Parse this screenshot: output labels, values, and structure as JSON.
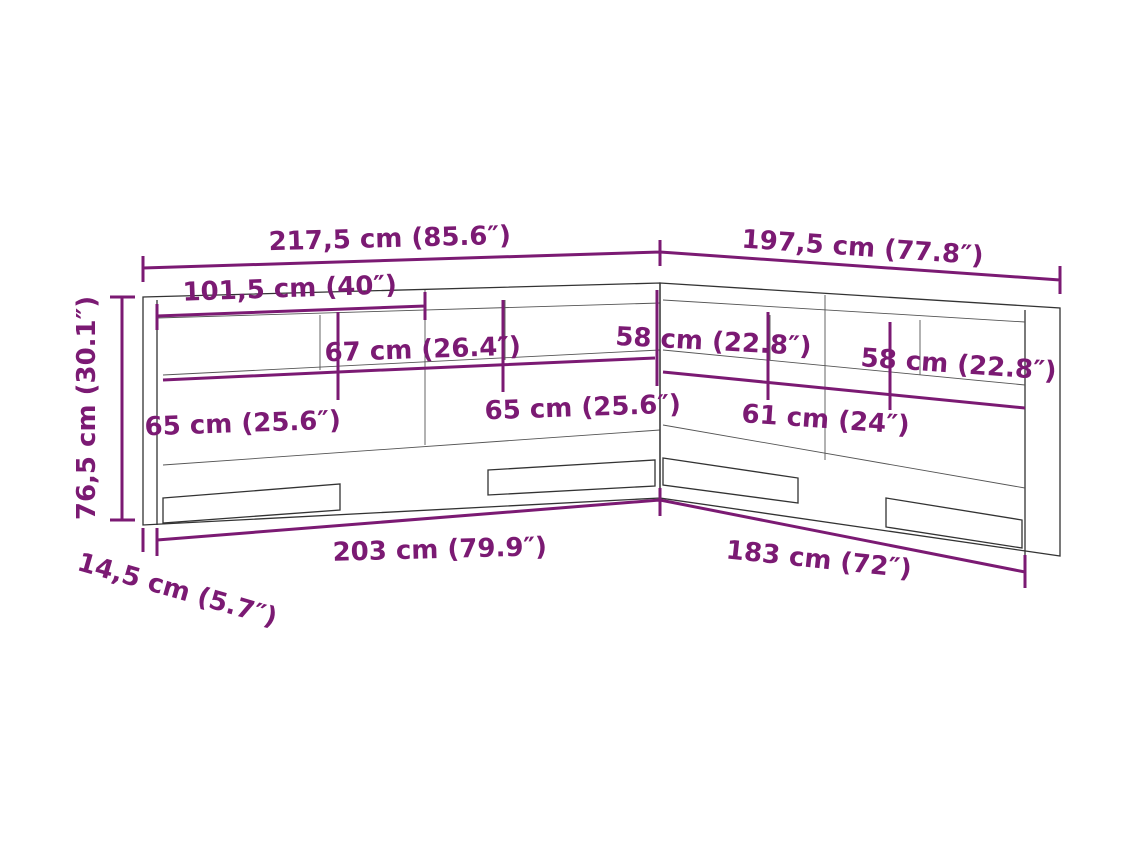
{
  "color": "#7b1a73",
  "dimensions": {
    "total_width_left": "217,5 cm (85.6″)",
    "total_width_right": "197,5 cm (77.8″)",
    "top_section": "101,5 cm (40″)",
    "shelf_67": "67 cm (26.4″)",
    "shelf_58_a": "58 cm (22.8″)",
    "shelf_58_b": "58 cm (22.8″)",
    "shelf_65_a": "65 cm (25.6″)",
    "shelf_65_b": "65 cm (25.6″)",
    "shelf_61": "61 cm (24″)",
    "height": "76,5 cm (30.1″)",
    "depth": "14,5 cm (5.7″)",
    "bottom_left": "203 cm (79.9″)",
    "bottom_right": "183 cm (72″)"
  }
}
